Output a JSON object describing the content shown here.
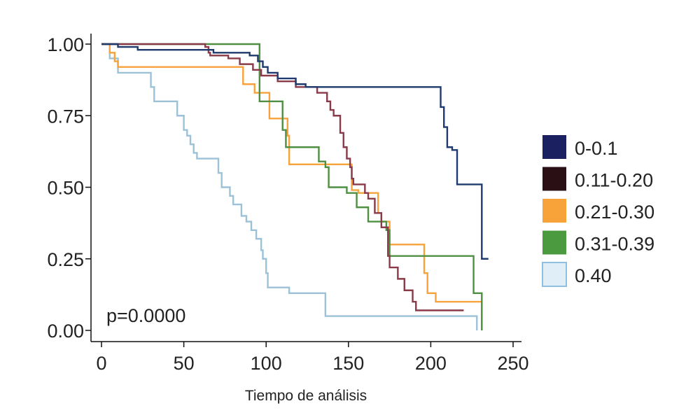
{
  "chart_data": {
    "type": "line",
    "subtype": "kaplan-meier step",
    "title": "",
    "xlabel": "Tiempo de análisis",
    "ylabel": "",
    "xlim": [
      0,
      250
    ],
    "ylim": [
      0,
      1
    ],
    "x_ticks": [
      0,
      50,
      100,
      150,
      200,
      250
    ],
    "x_tick_labels": [
      "0",
      "50",
      "100",
      "150",
      "200",
      "250"
    ],
    "y_ticks": [
      0,
      0.25,
      0.5,
      0.75,
      1.0
    ],
    "y_tick_labels": [
      "0.00",
      "0.25",
      "0.50",
      "0.75",
      "1.00"
    ],
    "grid": false,
    "legend_position": "right",
    "annotation": "p=0.0000",
    "series": [
      {
        "name": "0-0.1",
        "color": "#1f3a6e",
        "legend_color": "#1a2060",
        "points": [
          [
            0,
            1.0
          ],
          [
            10,
            0.99
          ],
          [
            22,
            0.98
          ],
          [
            68,
            0.97
          ],
          [
            90,
            0.96
          ],
          [
            95,
            0.94
          ],
          [
            98,
            0.92
          ],
          [
            101,
            0.9
          ],
          [
            107,
            0.88
          ],
          [
            118,
            0.86
          ],
          [
            124,
            0.85
          ],
          [
            205,
            0.85
          ],
          [
            206,
            0.78
          ],
          [
            208,
            0.71
          ],
          [
            210,
            0.64
          ],
          [
            213,
            0.63
          ],
          [
            216,
            0.51
          ],
          [
            230,
            0.51
          ],
          [
            231,
            0.25
          ],
          [
            235,
            0.25
          ]
        ]
      },
      {
        "name": "0.11-0.20",
        "color": "#8a3a48",
        "legend_color": "#2a1015",
        "points": [
          [
            0,
            1.0
          ],
          [
            63,
            0.99
          ],
          [
            65,
            0.97
          ],
          [
            66,
            0.96
          ],
          [
            77,
            0.95
          ],
          [
            84,
            0.93
          ],
          [
            92,
            0.91
          ],
          [
            97,
            0.89
          ],
          [
            107,
            0.87
          ],
          [
            118,
            0.85
          ],
          [
            131,
            0.83
          ],
          [
            137,
            0.8
          ],
          [
            139,
            0.77
          ],
          [
            141,
            0.75
          ],
          [
            145,
            0.69
          ],
          [
            147,
            0.64
          ],
          [
            149,
            0.6
          ],
          [
            151,
            0.57
          ],
          [
            152,
            0.53
          ],
          [
            153,
            0.51
          ],
          [
            160,
            0.48
          ],
          [
            162,
            0.46
          ],
          [
            166,
            0.41
          ],
          [
            170,
            0.36
          ],
          [
            174,
            0.26
          ],
          [
            175,
            0.22
          ],
          [
            180,
            0.18
          ],
          [
            184,
            0.14
          ],
          [
            189,
            0.1
          ],
          [
            191,
            0.07
          ],
          [
            220,
            0.07
          ]
        ]
      },
      {
        "name": "0.21-0.30",
        "color": "#f7a23a",
        "legend_color": "#f8a23a",
        "points": [
          [
            0,
            1.0
          ],
          [
            5,
            0.97
          ],
          [
            8,
            0.94
          ],
          [
            10,
            0.92
          ],
          [
            84,
            0.92
          ],
          [
            86,
            0.86
          ],
          [
            93,
            0.83
          ],
          [
            102,
            0.74
          ],
          [
            113,
            0.68
          ],
          [
            114,
            0.58
          ],
          [
            150,
            0.58
          ],
          [
            152,
            0.49
          ],
          [
            156,
            0.48
          ],
          [
            168,
            0.41
          ],
          [
            170,
            0.38
          ],
          [
            175,
            0.3
          ],
          [
            194,
            0.3
          ],
          [
            196,
            0.2
          ],
          [
            198,
            0.13
          ],
          [
            203,
            0.1
          ],
          [
            230,
            0.1
          ],
          [
            231,
            0.0
          ]
        ]
      },
      {
        "name": "0.31-0.39",
        "color": "#4f8f42",
        "legend_color": "#4c9a40",
        "points": [
          [
            0,
            1.0
          ],
          [
            93,
            1.0
          ],
          [
            96,
            0.8
          ],
          [
            105,
            0.8
          ],
          [
            110,
            0.7
          ],
          [
            112,
            0.64
          ],
          [
            125,
            0.64
          ],
          [
            132,
            0.59
          ],
          [
            136,
            0.57
          ],
          [
            138,
            0.5
          ],
          [
            149,
            0.48
          ],
          [
            155,
            0.43
          ],
          [
            162,
            0.38
          ],
          [
            173,
            0.35
          ],
          [
            175,
            0.26
          ],
          [
            223,
            0.26
          ],
          [
            226,
            0.13
          ],
          [
            230,
            0.13
          ],
          [
            231,
            0.0
          ]
        ]
      },
      {
        "name": "0.40",
        "color": "#9cc2d8",
        "legend_color": "#e0eef8",
        "legend_border": "#8fc0e0",
        "points": [
          [
            0,
            1.0
          ],
          [
            5,
            0.95
          ],
          [
            10,
            0.9
          ],
          [
            28,
            0.9
          ],
          [
            30,
            0.85
          ],
          [
            32,
            0.8
          ],
          [
            44,
            0.8
          ],
          [
            46,
            0.75
          ],
          [
            50,
            0.7
          ],
          [
            52,
            0.68
          ],
          [
            54,
            0.65
          ],
          [
            56,
            0.62
          ],
          [
            58,
            0.6
          ],
          [
            69,
            0.6
          ],
          [
            71,
            0.55
          ],
          [
            73,
            0.5
          ],
          [
            78,
            0.47
          ],
          [
            80,
            0.44
          ],
          [
            85,
            0.4
          ],
          [
            88,
            0.38
          ],
          [
            91,
            0.35
          ],
          [
            94,
            0.32
          ],
          [
            97,
            0.28
          ],
          [
            98,
            0.25
          ],
          [
            100,
            0.2
          ],
          [
            101,
            0.15
          ],
          [
            112,
            0.15
          ],
          [
            114,
            0.13
          ],
          [
            134,
            0.13
          ],
          [
            136,
            0.05
          ],
          [
            227,
            0.05
          ],
          [
            228,
            0.0
          ]
        ]
      }
    ]
  }
}
